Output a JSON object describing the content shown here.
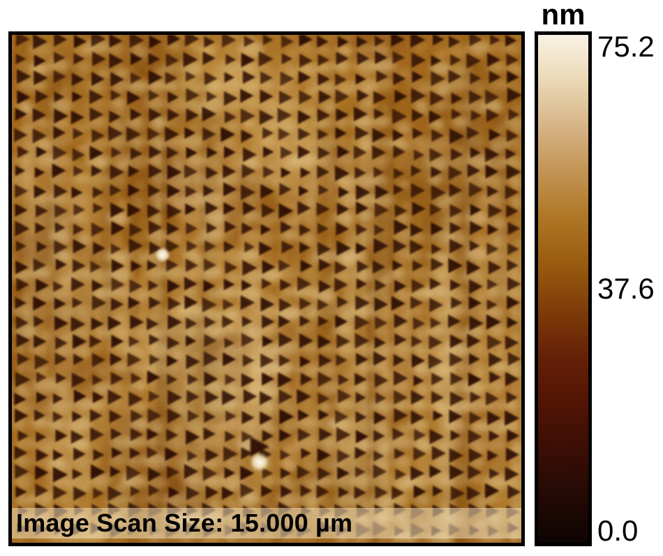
{
  "afm_image": {
    "scan_label": "Image Scan Size: 15.000 µm",
    "label_band_color": "rgba(243,226,188,0.55)",
    "border_color": "#000000"
  },
  "colorbar": {
    "unit": "nm",
    "tick_labels": [
      "75.2",
      "37.6",
      "0.0"
    ],
    "gradient": [
      "#f9f2e4",
      "#ead8b4",
      "#d6b386",
      "#c29352",
      "#ad7524",
      "#985a0f",
      "#7e3b09",
      "#642007",
      "#511405",
      "#3a0e05",
      "#230904",
      "#0d0403"
    ]
  },
  "chart_data": {
    "type": "heatmap",
    "title": "",
    "units": "nm",
    "zmin": 0.0,
    "zmid": 37.6,
    "zmax": 75.2,
    "scan_size": "15.000 µm",
    "colormap": "AFM gold/amber height palette: black - dark red - brown - orange - cream (0.0 to 75.2 nm)",
    "description": "Square AFM topography scan showing a periodic 27 x 27 array of dark right-pointing triangular pits on an amber background with mottled lighter highlights, faint vertical streaks, and two saturated bright white defect spots.",
    "pattern": {
      "grid_cols": 27,
      "grid_rows": 27,
      "feature": "dark right-pointing triangular pits",
      "base_color": "#a1671c",
      "pit_color": "#2c0e03",
      "highlight_color": "#ead29b",
      "streak_light": "#ecd5a0",
      "streak_dark": "#5e3206",
      "palette": [
        "#6f3c0a",
        "#82490e",
        "#9a6018",
        "#b5812f",
        "#c99a4a",
        "#d8b068",
        "#e3c284"
      ],
      "bright_spots": [
        {
          "x": 0.296,
          "y": 0.433,
          "r": 11,
          "big_pit": false
        },
        {
          "x": 0.486,
          "y": 0.841,
          "r": 14,
          "big_pit": true
        }
      ]
    }
  }
}
